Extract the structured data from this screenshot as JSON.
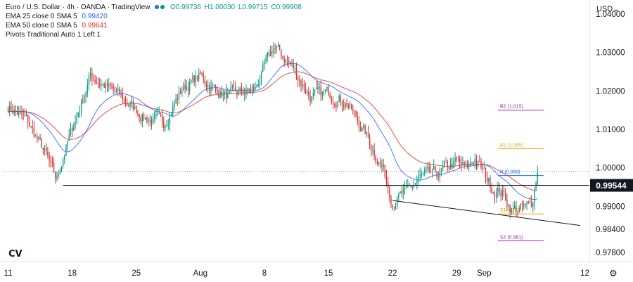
{
  "header": {
    "symbol": "Euro / U.S. Dollar · 4h · OANDA · TradingView",
    "open": "O0.99736",
    "high": "H1.00030",
    "low": "L0.99715",
    "close": "C0.99908",
    "dot_colors": [
      "#2962ff",
      "#089981"
    ]
  },
  "legend": [
    {
      "label": "EMA 25 close 0 SMA 5",
      "value": "0.99420",
      "color": "#2962ff"
    },
    {
      "label": "EMA 50 close 0 SMA 5",
      "value": "0.99641",
      "color": "#d9312f"
    },
    {
      "label": "Pivots Traditional Auto 1 Left 1",
      "value": "",
      "color": "#131722"
    }
  ],
  "currency_label": "USD",
  "settings_icon": "gear-icon",
  "chart_data": {
    "type": "candlestick",
    "title": "Euro / U.S. Dollar · 4h · OANDA",
    "ylim": [
      0.9756,
      1.0433
    ],
    "y_ticks": [
      "1.04000",
      "1.03000",
      "1.02000",
      "1.01000",
      "1.00000",
      "0.99000",
      "0.98400",
      "0.97800"
    ],
    "x_ticks": [
      {
        "label": "11",
        "x": 0
      },
      {
        "label": "18",
        "x": 7
      },
      {
        "label": "25",
        "x": 14
      },
      {
        "label": "Aug",
        "x": 21
      },
      {
        "label": "8",
        "x": 28
      },
      {
        "label": "15",
        "x": 35
      },
      {
        "label": "22",
        "x": 42
      },
      {
        "label": "29",
        "x": 49
      },
      {
        "label": "Sep",
        "x": 52
      },
      {
        "label": "12",
        "x": 63
      }
    ],
    "x_range": [
      -0.5,
      63.5
    ],
    "candles_per_day": 6,
    "path_anchors": [
      [
        0,
        1.016
      ],
      [
        2,
        1.0125
      ],
      [
        4,
        1.004
      ],
      [
        5.3,
        0.9965
      ],
      [
        6,
        1.003
      ],
      [
        9,
        1.024
      ],
      [
        12,
        1.019
      ],
      [
        15,
        1.013
      ],
      [
        17,
        1.0115
      ],
      [
        19,
        1.0205
      ],
      [
        21,
        1.024
      ],
      [
        22,
        1.0215
      ],
      [
        24,
        1.0185
      ],
      [
        27,
        1.0205
      ],
      [
        29,
        1.0315
      ],
      [
        31,
        1.0265
      ],
      [
        33,
        1.0185
      ],
      [
        35,
        1.0195
      ],
      [
        37,
        1.017
      ],
      [
        39,
        1.009
      ],
      [
        41,
        0.9995
      ],
      [
        42,
        0.9915
      ],
      [
        43.5,
        0.9935
      ],
      [
        45,
        0.9975
      ],
      [
        47,
        0.9985
      ],
      [
        49,
        1.0015
      ],
      [
        50,
        0.9995
      ],
      [
        51,
        1.0025
      ],
      [
        52,
        0.9985
      ],
      [
        53,
        0.9945
      ],
      [
        54,
        0.9935
      ],
      [
        55,
        0.9892
      ],
      [
        56.5,
        0.9895
      ],
      [
        57.2,
        0.9905
      ],
      [
        57.8,
        0.9991
      ]
    ],
    "series": [
      {
        "name": "EMA 25 close 0 SMA 5",
        "period": 25,
        "color": "#2962ff"
      },
      {
        "name": "EMA 50 close 0 SMA 5",
        "period": 50,
        "color": "#d9312f"
      }
    ],
    "candle_colors": {
      "up": "#089981",
      "down": "#d9312f"
    },
    "pivots": [
      {
        "label": "R2 (1.015)",
        "value": 1.015,
        "color": "#9c27b0"
      },
      {
        "label": "R1 (1.005)",
        "value": 1.005,
        "color": "#f59e0b"
      },
      {
        "label": "P (0.998)",
        "value": 0.998,
        "color": "#2962ff"
      },
      {
        "label": "S1 (0.988)",
        "value": 0.988,
        "color": "#f59e0b"
      },
      {
        "label": "S2 (0.981)",
        "value": 0.981,
        "color": "#9c27b0"
      }
    ],
    "pivot_x_range": [
      53.5,
      58.5
    ],
    "support_level": {
      "value": 0.99544,
      "label": "0.99544",
      "x_start": 6
    },
    "trendline": {
      "x1": 42,
      "y1": 0.9915,
      "x2": 62.5,
      "y2": 0.985
    },
    "last_price": 0.99908
  }
}
